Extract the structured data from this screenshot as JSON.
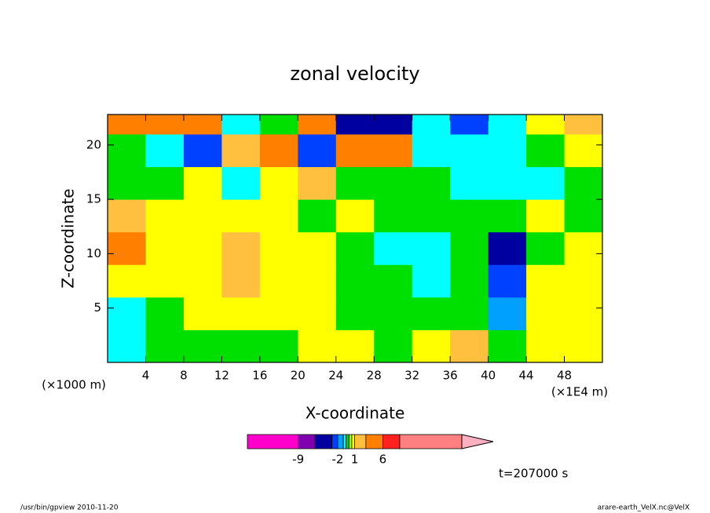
{
  "chart_data": {
    "type": "contourf",
    "title": "zonal velocity",
    "x_label": "X-coordinate",
    "y_label": "Z-coordinate",
    "x_unit": "(×1E4 m)",
    "y_unit": "(×1000 m)",
    "time_label": "t=207000 s",
    "footer_left": "/usr/bin/gpview  2010-11-20",
    "footer_right": "arare-earth_VelX.nc@VelX",
    "xlim": [
      0,
      52
    ],
    "ylim": [
      0,
      22.8
    ],
    "xticks": [
      4,
      8,
      12,
      16,
      20,
      24,
      28,
      32,
      36,
      40,
      44,
      48
    ],
    "yticks": [
      5,
      10,
      15,
      20
    ],
    "x": [
      2,
      6,
      10,
      14,
      18,
      22,
      26,
      30,
      34,
      38,
      42,
      46,
      50
    ],
    "y": [
      1.5,
      4.5,
      7.5,
      10.5,
      13.5,
      16.5,
      19.5,
      22.5
    ],
    "z": [
      [
        -0.7,
        -0.2,
        -0.2,
        -0.2,
        -0.2,
        0.7,
        0.7,
        -0.2,
        0.7,
        1.5,
        -0.2,
        0.7,
        0.7
      ],
      [
        -0.7,
        -0.2,
        0.7,
        0.7,
        0.7,
        0.7,
        -0.2,
        -0.2,
        -0.2,
        -0.2,
        -1.5,
        0.7,
        0.7
      ],
      [
        0.7,
        0.7,
        0.7,
        1.5,
        0.7,
        0.7,
        -0.2,
        -0.2,
        -0.7,
        -0.2,
        -2.5,
        0.7,
        0.7
      ],
      [
        3.5,
        0.7,
        0.7,
        1.5,
        0.7,
        0.7,
        -0.2,
        -0.7,
        -0.7,
        -0.2,
        -4,
        -0.2,
        0.7
      ],
      [
        1.5,
        0.7,
        0.7,
        0.7,
        0.7,
        -0.2,
        0.7,
        -0.2,
        -0.2,
        -0.2,
        -0.2,
        0.7,
        -0.2
      ],
      [
        -0.2,
        -0.2,
        0.7,
        -0.7,
        0.7,
        1.5,
        -0.2,
        -0.2,
        -0.2,
        -0.7,
        -0.7,
        -0.7,
        -0.2
      ],
      [
        -0.2,
        -0.7,
        -2.5,
        1.5,
        3.5,
        -2.5,
        3.5,
        3.5,
        -0.7,
        -0.7,
        -0.7,
        -0.2,
        0.7
      ],
      [
        3.5,
        3.5,
        3.5,
        -0.7,
        -0.2,
        3.5,
        -4,
        -4,
        -0.7,
        -2.5,
        -0.7,
        0.7,
        1.5
      ]
    ],
    "levels": [
      -18,
      -9,
      -6,
      -3,
      -2,
      -1,
      -0.5,
      0,
      0.5,
      1,
      3,
      6,
      9,
      20
    ],
    "colors": [
      "#ff00cc",
      "#8000b0",
      "#0000a0",
      "#0040ff",
      "#00a0ff",
      "#00ffff",
      "#00e000",
      "#90ff00",
      "#ffff00",
      "#ffc040",
      "#ff8000",
      "#ff2020",
      "#ff8080"
    ],
    "colorbar_ticks": [
      -9,
      -2,
      1,
      6
    ]
  }
}
